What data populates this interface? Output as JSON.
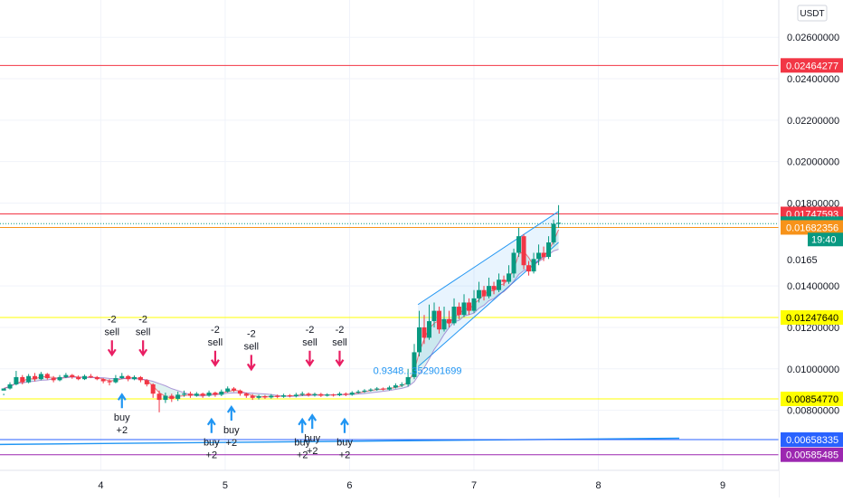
{
  "chart_data": {
    "type": "candlestick",
    "currency_label": "USDT",
    "y_axis": {
      "ticks": [
        {
          "label": "0.02600000",
          "value": 0.026
        },
        {
          "label": "0.02400000",
          "value": 0.024
        },
        {
          "label": "0.02200000",
          "value": 0.022
        },
        {
          "label": "0.02000000",
          "value": 0.02
        },
        {
          "label": "0.01800000",
          "value": 0.018
        },
        {
          "label": "0.01400000",
          "value": 0.014
        },
        {
          "label": "0.01200000",
          "value": 0.012
        },
        {
          "label": "0.01000000",
          "value": 0.01
        },
        {
          "label": "0.00800000",
          "value": 0.008
        }
      ],
      "ylim": [
        0.0051,
        0.0278
      ],
      "grid": true
    },
    "x_axis": {
      "ticks": [
        {
          "label": "4",
          "value": 4
        },
        {
          "label": "5",
          "value": 5
        },
        {
          "label": "6",
          "value": 6
        },
        {
          "label": "7",
          "value": 7
        },
        {
          "label": "8",
          "value": 8
        },
        {
          "label": "9",
          "value": 9
        }
      ],
      "xlim": [
        3.19,
        9.45
      ],
      "grid": true
    },
    "price_lines": [
      {
        "label": "0.02464277",
        "value": 0.02464277,
        "color": "#f23645",
        "style": "solid"
      },
      {
        "label": "0.01747593",
        "value": 0.01747593,
        "color": "#f23645",
        "style": "solid"
      },
      {
        "label": "0.01700575",
        "value": 0.01700575,
        "color": "#089981",
        "style": "dotted"
      },
      {
        "label": "0.01682356",
        "value": 0.01682356,
        "color": "#f7931a",
        "style": "solid"
      },
      {
        "label": "0.01247640",
        "value": 0.0124764,
        "color": "#ffff00",
        "style": "solid"
      },
      {
        "label": "0.00854770",
        "value": 0.0085477,
        "color": "#ffff00",
        "style": "solid"
      },
      {
        "label": "0.00658335",
        "value": 0.00658335,
        "color": "#2962ff",
        "style": "solid"
      },
      {
        "label": "0.00585485",
        "value": 0.00585485,
        "color": "#9c27b0",
        "style": "solid"
      }
    ],
    "partial_tick_label": "0.0165",
    "countdown_label": "19:40",
    "trendline": {
      "from": [
        3.19,
        0.00635
      ],
      "to": [
        8.65,
        0.00665
      ],
      "color": "#2196f3"
    },
    "channel": {
      "upper": [
        [
          6.55,
          0.0131
        ],
        [
          7.68,
          0.0176
        ]
      ],
      "lower": [
        [
          6.55,
          0.0101
        ],
        [
          7.68,
          0.0161
        ]
      ],
      "color": "#2196f3"
    },
    "annotation": {
      "text": "0.9348...352901699",
      "x": 6.19,
      "y": 0.00975,
      "color": "#2196f3"
    },
    "sell_signals": [
      {
        "x": 4.09,
        "y": 0.0105,
        "labels": [
          "-2",
          "sell"
        ]
      },
      {
        "x": 4.34,
        "y": 0.0105,
        "labels": [
          "-2",
          "sell"
        ]
      },
      {
        "x": 4.92,
        "y": 0.01,
        "labels": [
          "-2",
          "sell"
        ]
      },
      {
        "x": 5.21,
        "y": 0.0098,
        "labels": [
          "-2",
          "sell"
        ]
      },
      {
        "x": 5.68,
        "y": 0.01,
        "labels": [
          "-2",
          "sell"
        ]
      },
      {
        "x": 5.92,
        "y": 0.01,
        "labels": [
          "-2",
          "sell"
        ]
      }
    ],
    "buy_signals": [
      {
        "x": 4.17,
        "y": 0.0088,
        "labels": [
          "buy",
          "+2"
        ]
      },
      {
        "x": 4.89,
        "y": 0.0076,
        "labels": [
          "buy",
          "+2"
        ]
      },
      {
        "x": 5.05,
        "y": 0.0082,
        "labels": [
          "buy",
          "+2"
        ]
      },
      {
        "x": 5.62,
        "y": 0.0076,
        "labels": [
          "buy",
          "+2"
        ]
      },
      {
        "x": 5.7,
        "y": 0.0078,
        "labels": [
          "buy",
          "+2"
        ]
      },
      {
        "x": 5.96,
        "y": 0.0076,
        "labels": [
          "buy",
          "+2"
        ]
      }
    ],
    "series": [
      {
        "type": "candles",
        "up_color": "#089981",
        "down_color": "#f23645",
        "candles": [
          [
            3.22,
            0.00895,
            0.00905,
            0.0088,
            0.00872
          ],
          [
            3.27,
            0.00905,
            0.00925,
            0.00935,
            0.009
          ],
          [
            3.32,
            0.00925,
            0.0096,
            0.0099,
            0.0092
          ],
          [
            3.37,
            0.0096,
            0.00935,
            0.0097,
            0.00925
          ],
          [
            3.42,
            0.00935,
            0.00965,
            0.00975,
            0.0093
          ],
          [
            3.47,
            0.00965,
            0.0095,
            0.0098,
            0.0094
          ],
          [
            3.52,
            0.0095,
            0.00975,
            0.00985,
            0.00945
          ],
          [
            3.57,
            0.00975,
            0.00955,
            0.0098,
            0.00948
          ],
          [
            3.62,
            0.00955,
            0.00945,
            0.00965,
            0.00935
          ],
          [
            3.67,
            0.00945,
            0.0096,
            0.0097,
            0.0094
          ],
          [
            3.72,
            0.0096,
            0.0097,
            0.0098,
            0.00955
          ],
          [
            3.77,
            0.0097,
            0.0096,
            0.00975,
            0.00952
          ],
          [
            3.82,
            0.0096,
            0.0095,
            0.00968,
            0.00945
          ],
          [
            3.87,
            0.0095,
            0.00965,
            0.00972,
            0.00946
          ],
          [
            3.92,
            0.00965,
            0.0096,
            0.00975,
            0.00955
          ],
          [
            3.97,
            0.0096,
            0.0095,
            0.00965,
            0.00945
          ],
          [
            4.02,
            0.0095,
            0.0094,
            0.00955,
            0.0093
          ],
          [
            4.07,
            0.0094,
            0.00935,
            0.0095,
            0.0092
          ],
          [
            4.12,
            0.00935,
            0.00955,
            0.0097,
            0.0093
          ],
          [
            4.17,
            0.00955,
            0.00965,
            0.0098,
            0.0095
          ],
          [
            4.22,
            0.00965,
            0.0095,
            0.0097,
            0.0094
          ],
          [
            4.27,
            0.0095,
            0.0096,
            0.00968,
            0.00945
          ],
          [
            4.32,
            0.0096,
            0.00945,
            0.00965,
            0.00935
          ],
          [
            4.37,
            0.00945,
            0.00925,
            0.0095,
            0.00915
          ],
          [
            4.42,
            0.00925,
            0.0088,
            0.0093,
            0.0086
          ],
          [
            4.47,
            0.0088,
            0.0085,
            0.00895,
            0.0079
          ],
          [
            4.52,
            0.0085,
            0.0087,
            0.00885,
            0.00835
          ],
          [
            4.57,
            0.0087,
            0.00855,
            0.0088,
            0.0084
          ],
          [
            4.62,
            0.00855,
            0.00875,
            0.0089,
            0.00845
          ],
          [
            4.67,
            0.00875,
            0.0088,
            0.00895,
            0.00865
          ],
          [
            4.72,
            0.0088,
            0.0087,
            0.0089,
            0.0086
          ],
          [
            4.77,
            0.0087,
            0.0088,
            0.00888,
            0.00865
          ],
          [
            4.82,
            0.0088,
            0.0087,
            0.00885,
            0.0086
          ],
          [
            4.87,
            0.0087,
            0.00885,
            0.00895,
            0.00865
          ],
          [
            4.92,
            0.00885,
            0.00875,
            0.0089,
            0.00865
          ],
          [
            4.97,
            0.00875,
            0.0089,
            0.009,
            0.00868
          ],
          [
            5.02,
            0.0089,
            0.00905,
            0.00915,
            0.00885
          ],
          [
            5.07,
            0.00905,
            0.00895,
            0.00912,
            0.00888
          ],
          [
            5.12,
            0.00895,
            0.0088,
            0.009,
            0.0087
          ],
          [
            5.17,
            0.0088,
            0.0087,
            0.00885,
            0.0086
          ],
          [
            5.22,
            0.0087,
            0.0086,
            0.00878,
            0.0085
          ],
          [
            5.27,
            0.0086,
            0.00868,
            0.00875,
            0.00852
          ],
          [
            5.32,
            0.00868,
            0.00862,
            0.00874,
            0.00855
          ],
          [
            5.37,
            0.00862,
            0.0087,
            0.00878,
            0.00856
          ],
          [
            5.42,
            0.0087,
            0.00865,
            0.00876,
            0.00858
          ],
          [
            5.47,
            0.00865,
            0.00872,
            0.0088,
            0.0086
          ],
          [
            5.52,
            0.00872,
            0.00868,
            0.00878,
            0.00862
          ],
          [
            5.57,
            0.00868,
            0.00875,
            0.00884,
            0.00862
          ],
          [
            5.62,
            0.00875,
            0.0088,
            0.0089,
            0.00868
          ],
          [
            5.67,
            0.0088,
            0.00872,
            0.00886,
            0.00866
          ],
          [
            5.72,
            0.00872,
            0.00878,
            0.00885,
            0.00866
          ],
          [
            5.77,
            0.00878,
            0.0087,
            0.00884,
            0.00864
          ],
          [
            5.82,
            0.0087,
            0.00876,
            0.00882,
            0.00866
          ],
          [
            5.87,
            0.00876,
            0.00872,
            0.0088,
            0.00866
          ],
          [
            5.92,
            0.00872,
            0.0088,
            0.00888,
            0.00868
          ],
          [
            5.97,
            0.0088,
            0.00875,
            0.00886,
            0.00868
          ],
          [
            6.02,
            0.00875,
            0.00885,
            0.00892,
            0.0087
          ],
          [
            6.07,
            0.00885,
            0.0089,
            0.00898,
            0.0088
          ],
          [
            6.12,
            0.0089,
            0.00895,
            0.00902,
            0.00884
          ],
          [
            6.17,
            0.00895,
            0.009,
            0.00906,
            0.0089
          ],
          [
            6.22,
            0.009,
            0.00905,
            0.00912,
            0.00894
          ],
          [
            6.27,
            0.00905,
            0.009,
            0.0091,
            0.00895
          ],
          [
            6.32,
            0.009,
            0.0091,
            0.00918,
            0.00896
          ],
          [
            6.37,
            0.0091,
            0.0092,
            0.0093,
            0.00905
          ],
          [
            6.42,
            0.0092,
            0.00925,
            0.00935,
            0.00912
          ],
          [
            6.47,
            0.00925,
            0.0096,
            0.01,
            0.00915
          ],
          [
            6.52,
            0.0096,
            0.0108,
            0.0112,
            0.0095
          ],
          [
            6.56,
            0.0108,
            0.012,
            0.0128,
            0.0106
          ],
          [
            6.6,
            0.012,
            0.0115,
            0.0126,
            0.0112
          ],
          [
            6.64,
            0.0115,
            0.0123,
            0.0131,
            0.0114
          ],
          [
            6.68,
            0.0123,
            0.0128,
            0.0132,
            0.012
          ],
          [
            6.72,
            0.0128,
            0.0119,
            0.013,
            0.0117
          ],
          [
            6.76,
            0.0119,
            0.0124,
            0.013,
            0.0118
          ],
          [
            6.8,
            0.0124,
            0.0122,
            0.0128,
            0.012
          ],
          [
            6.84,
            0.0122,
            0.013,
            0.0134,
            0.0121
          ],
          [
            6.88,
            0.013,
            0.0126,
            0.0132,
            0.0124
          ],
          [
            6.92,
            0.0126,
            0.0132,
            0.0136,
            0.0125
          ],
          [
            6.96,
            0.0132,
            0.0128,
            0.0134,
            0.0126
          ],
          [
            7.0,
            0.0128,
            0.0134,
            0.0138,
            0.0127
          ],
          [
            7.04,
            0.0134,
            0.0138,
            0.0142,
            0.0132
          ],
          [
            7.08,
            0.0138,
            0.0135,
            0.014,
            0.0133
          ],
          [
            7.12,
            0.0135,
            0.014,
            0.0144,
            0.0134
          ],
          [
            7.16,
            0.014,
            0.0138,
            0.0142,
            0.0136
          ],
          [
            7.2,
            0.0138,
            0.0143,
            0.0146,
            0.0137
          ],
          [
            7.24,
            0.0143,
            0.0142,
            0.0145,
            0.014
          ],
          [
            7.28,
            0.0142,
            0.0146,
            0.015,
            0.0141
          ],
          [
            7.32,
            0.0146,
            0.0156,
            0.0158,
            0.0144
          ],
          [
            7.36,
            0.0156,
            0.0164,
            0.0168,
            0.0154
          ],
          [
            7.4,
            0.0164,
            0.015,
            0.0165,
            0.0148
          ],
          [
            7.44,
            0.015,
            0.0147,
            0.0152,
            0.0145
          ],
          [
            7.48,
            0.0147,
            0.0153,
            0.0156,
            0.0146
          ],
          [
            7.52,
            0.0153,
            0.0156,
            0.016,
            0.015
          ],
          [
            7.56,
            0.0156,
            0.0154,
            0.0159,
            0.0152
          ],
          [
            7.6,
            0.0154,
            0.0161,
            0.0164,
            0.0153
          ],
          [
            7.64,
            0.0161,
            0.017,
            0.0172,
            0.016
          ],
          [
            7.68,
            0.017,
            0.01705,
            0.0179,
            0.0168
          ]
        ]
      }
    ]
  }
}
